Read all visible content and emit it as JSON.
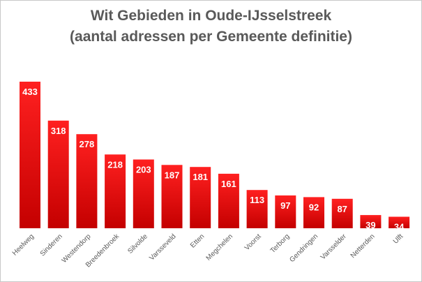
{
  "chart_data": {
    "type": "bar",
    "title": "Wit Gebieden in Oude-IJsselstreek",
    "subtitle": "(aantal adressen per Gemeente definitie)",
    "categories": [
      "Heelweg",
      "Sinderen",
      "Westendorp",
      "Breedenbroek",
      "Silvolde",
      "Varsseveld",
      "Etten",
      "Megchelen",
      "Voorst",
      "Terborg",
      "Gendringen",
      "Varsselder",
      "Netterden",
      "Ulft"
    ],
    "values": [
      433,
      318,
      278,
      218,
      203,
      187,
      181,
      161,
      113,
      97,
      92,
      87,
      39,
      34
    ],
    "ylim": [
      0,
      433
    ],
    "grid": false,
    "legend": "none",
    "data_labels": true,
    "colors": {
      "bar_top": "#ff1a1a",
      "bar_bottom": "#c00000",
      "label": "#ffffff",
      "title": "#595959"
    }
  }
}
